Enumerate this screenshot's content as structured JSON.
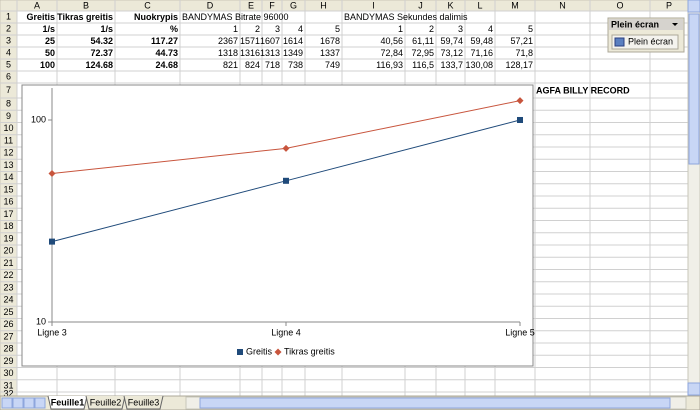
{
  "columns": [
    "A",
    "B",
    "C",
    "D",
    "E",
    "F",
    "G",
    "H",
    "I",
    "J",
    "K",
    "L",
    "M",
    "N",
    "O",
    "P"
  ],
  "row_numbers": [
    1,
    2,
    3,
    4,
    5,
    6,
    7,
    8,
    9,
    10,
    11,
    12,
    13,
    14,
    15,
    16,
    17,
    18,
    19,
    20,
    21,
    22,
    23,
    24,
    25,
    26,
    27,
    28,
    29,
    30,
    31,
    32
  ],
  "table": {
    "rows": [
      [
        "Greitis",
        "Tikras greitis",
        "Nuokrypis",
        "BANDYMAS Bitrate 96000",
        null,
        null,
        null,
        null,
        "BANDYMAS Sekundes dalimis",
        null,
        null,
        null,
        null
      ],
      [
        "1/s",
        "1/s",
        "%",
        "1",
        "2",
        "3",
        "4",
        "5",
        "1",
        "2",
        "3",
        "4",
        "5"
      ],
      [
        "25",
        "54.32",
        "117.27",
        "2367",
        "1571",
        "1607",
        "1614",
        "1678",
        "40,56",
        "61,11",
        "59,74",
        "59,48",
        "57,21"
      ],
      [
        "50",
        "72.37",
        "44.73",
        "1318",
        "1316",
        "1313",
        "1349",
        "1337",
        "72,84",
        "72,95",
        "73,12",
        "71,16",
        "71,8"
      ],
      [
        "100",
        "124.68",
        "24.68",
        "821",
        "824",
        "718",
        "738",
        "749",
        "116,93",
        "116,5",
        "133,7",
        "130,08",
        "128,17"
      ]
    ]
  },
  "banner_cell": "AGFA BILLY RECORD",
  "toolbar": {
    "title": "Plein écran",
    "button": "Plein écran"
  },
  "sheet_tabs": [
    "Feuille1",
    "Feuille2",
    "Feuille3"
  ],
  "chart_data": {
    "type": "line",
    "categories": [
      "Ligne 3",
      "Ligne 4",
      "Ligne 5"
    ],
    "series": [
      {
        "name": "Greitis",
        "color": "#1f4a7a",
        "marker": "square",
        "values": [
          25,
          50,
          100
        ]
      },
      {
        "name": "Tikras greitis",
        "color": "#c8553d",
        "marker": "diamond",
        "values": [
          54.32,
          72.37,
          124.68
        ]
      }
    ],
    "ylim": [
      10,
      144
    ],
    "yticks": [
      10,
      100
    ],
    "log_scale": true,
    "grid": false,
    "legend": "bottom"
  }
}
